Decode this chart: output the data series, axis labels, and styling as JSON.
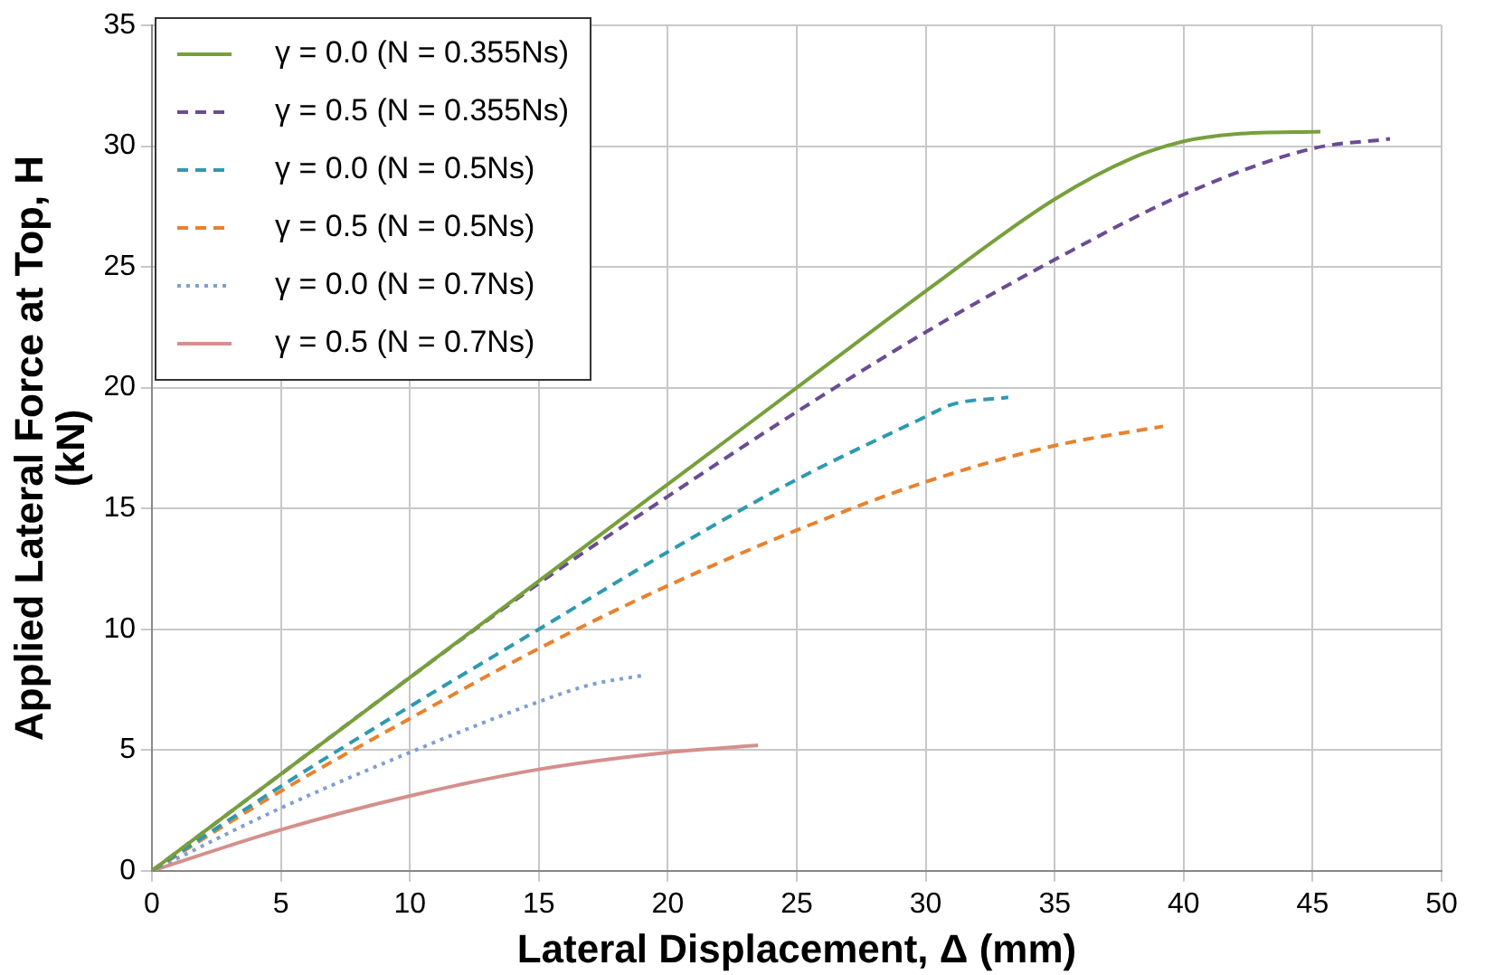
{
  "chart_data": {
    "type": "line",
    "xlabel": "Lateral Displacement, Δ (mm)",
    "ylabel": "Applied Lateral Force at Top, H (kN)",
    "xlim": [
      0,
      50
    ],
    "xticks": [
      0,
      5,
      10,
      15,
      20,
      25,
      30,
      35,
      40,
      45,
      50
    ],
    "ylim": [
      0,
      35
    ],
    "yticks": [
      0,
      5,
      10,
      15,
      20,
      25,
      30,
      35
    ],
    "grid": true,
    "legend": "top left",
    "marker": "none",
    "series": [
      {
        "name": "γ = 0.0 (N = 0.355Ns)",
        "color": "#77a03c",
        "line_style": "solid",
        "x": [
          0,
          5,
          10,
          15,
          20,
          25,
          30,
          35,
          38,
          40,
          42,
          45.3
        ],
        "values": [
          0,
          4,
          8,
          12,
          16,
          20,
          24,
          27.8,
          29.5,
          30.2,
          30.5,
          30.6
        ]
      },
      {
        "name": "γ = 0.5 (N = 0.355Ns)",
        "color": "#6a4c94",
        "line_style": "dashed",
        "x": [
          0,
          5,
          10,
          15,
          20,
          25,
          30,
          35,
          40,
          45,
          48
        ],
        "values": [
          0,
          4,
          8,
          11.9,
          15.5,
          19,
          22.3,
          25.3,
          28,
          29.9,
          30.3
        ]
      },
      {
        "name": "γ = 0.0 (N = 0.5Ns)",
        "color": "#2e9ab0",
        "line_style": "dashed",
        "x": [
          0,
          5,
          10,
          15,
          20,
          25,
          30,
          31,
          33.2
        ],
        "values": [
          0,
          3.5,
          6.8,
          10,
          13.2,
          16.2,
          18.8,
          19.3,
          19.6
        ]
      },
      {
        "name": "γ = 0.5 (N = 0.5Ns)",
        "color": "#e8822e",
        "line_style": "dashed",
        "x": [
          0,
          5,
          10,
          15,
          20,
          25,
          30,
          35,
          39.2
        ],
        "values": [
          0,
          3.3,
          6.3,
          9.2,
          11.8,
          14.1,
          16.1,
          17.6,
          18.4
        ]
      },
      {
        "name": "γ = 0.0 (N = 0.7Ns)",
        "color": "#7f9fd0",
        "line_style": "dotted",
        "x": [
          0,
          5,
          10,
          15,
          17,
          19.1
        ],
        "values": [
          0,
          2.6,
          4.9,
          7,
          7.7,
          8.1
        ]
      },
      {
        "name": "γ = 0.5 (N = 0.7Ns)",
        "color": "#d4908c",
        "line_style": "solid",
        "x": [
          0,
          5,
          10,
          15,
          20,
          23.5
        ],
        "values": [
          0,
          1.7,
          3.1,
          4.2,
          4.9,
          5.2
        ]
      }
    ]
  }
}
